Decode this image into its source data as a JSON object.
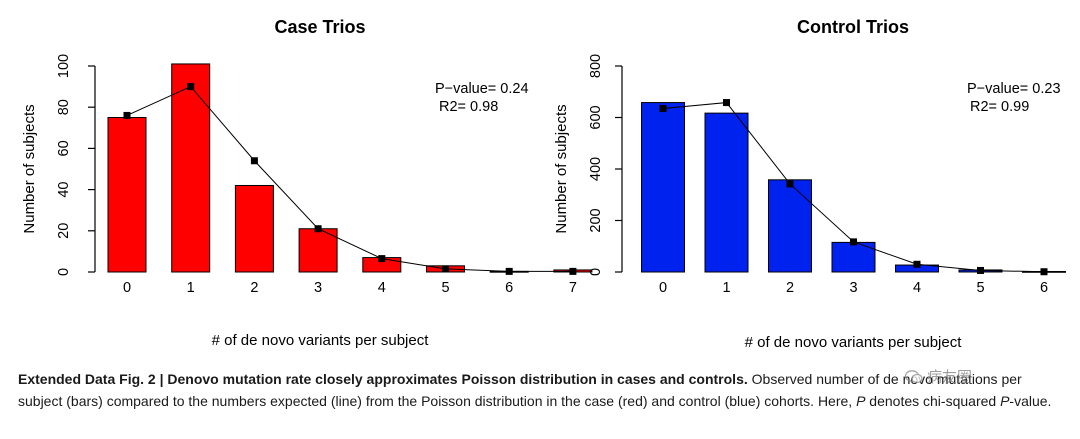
{
  "chart_data": [
    {
      "type": "bar",
      "title": "Case Trios",
      "xlabel": "# of de novo variants per subject",
      "ylabel": "Number of subjects",
      "categories": [
        "0",
        "1",
        "2",
        "3",
        "4",
        "5",
        "6",
        "7"
      ],
      "ylim": [
        0,
        100
      ],
      "yticks": [
        "0",
        "20",
        "40",
        "60",
        "80",
        "100"
      ],
      "series": [
        {
          "name": "observed",
          "kind": "bar",
          "color": "#ff0000",
          "values": [
            75,
            101,
            42,
            21,
            7,
            3,
            0.3,
            1
          ]
        },
        {
          "name": "expected",
          "kind": "line",
          "color": "#000000",
          "values": [
            76,
            90,
            54,
            21,
            6.5,
            1.5,
            0.3,
            0.3
          ]
        }
      ],
      "stats": {
        "p_value": "P−value= 0.24",
        "r2": "R2= 0.98"
      }
    },
    {
      "type": "bar",
      "title": "Control Trios",
      "xlabel": "# of de novo variants per subject",
      "ylabel": "Number of subjects",
      "categories": [
        "0",
        "1",
        "2",
        "3",
        "4",
        "5",
        "6"
      ],
      "ylim": [
        0,
        800
      ],
      "yticks": [
        "0",
        "200",
        "400",
        "600",
        "800"
      ],
      "series": [
        {
          "name": "observed",
          "kind": "bar",
          "color": "#0022ee",
          "values": [
            658,
            617,
            358,
            115,
            27,
            8,
            2
          ]
        },
        {
          "name": "expected",
          "kind": "line",
          "color": "#000000",
          "values": [
            635,
            658,
            342,
            117,
            30,
            6,
            1
          ]
        }
      ],
      "stats": {
        "p_value": "P−value= 0.23",
        "r2": "R2= 0.99"
      }
    }
  ],
  "caption": {
    "label": "Extended Data Fig. 2 | Denovo mutation rate closely approximates Poisson distribution in cases and controls.",
    "text_1": " Observed number of de novo mutations per subject (bars) compared to the numbers expected (line) from the Poisson distribution in the case (red) and control (blue) cohorts. Here, ",
    "p_symbol": "P",
    "text_2": " denotes chi-squared ",
    "p_symbol_2": "P",
    "text_3": "-value."
  },
  "watermark": {
    "text": "病友圈"
  }
}
